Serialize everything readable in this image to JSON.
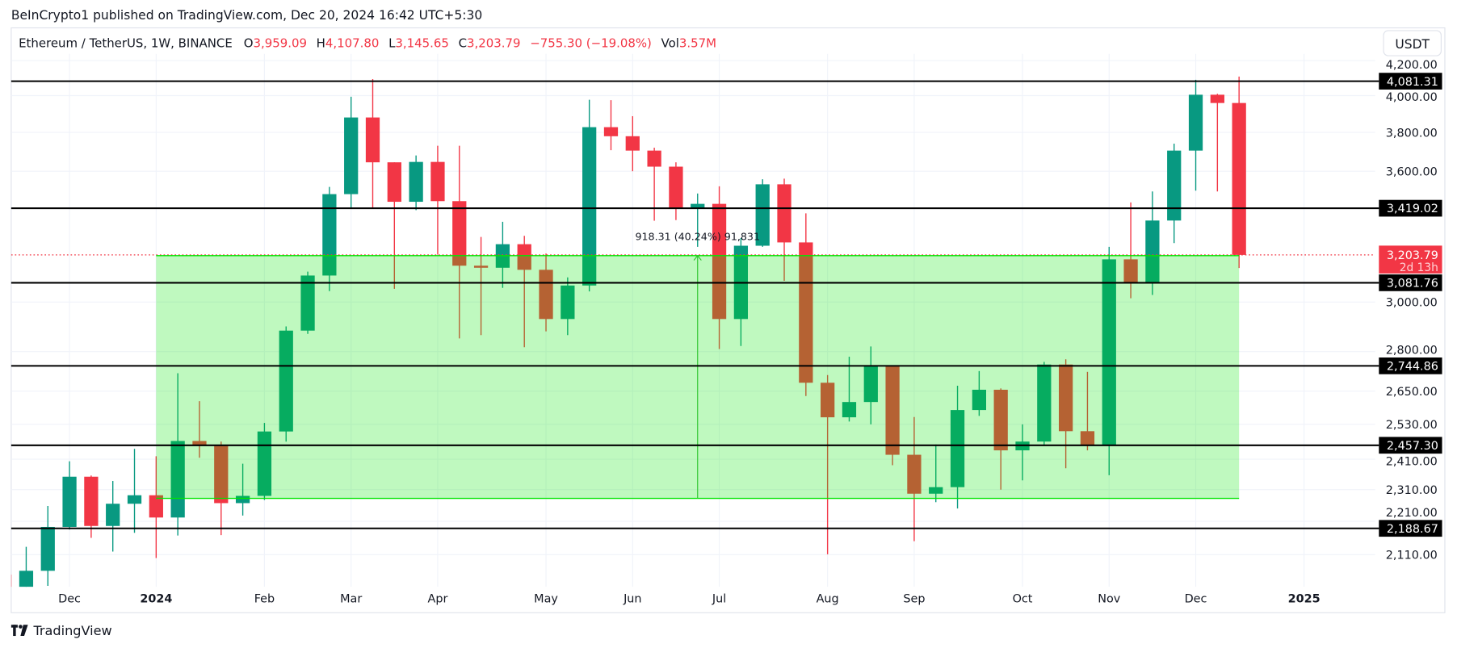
{
  "header": {
    "published": "BeInCrypto1 published on TradingView.com, Dec 20, 2024 16:42 UTC+5:30"
  },
  "legend": {
    "symbol": "Ethereum / TetherUS, 1W, BINANCE",
    "o_label": "O",
    "o": "3,959.09",
    "h_label": "H",
    "h": "4,107.80",
    "l_label": "L",
    "l": "3,145.65",
    "c_label": "C",
    "c": "3,203.79",
    "change": "−755.30 (−19.08%)",
    "vol_label": "Vol",
    "vol": "3.57M"
  },
  "currency_button": "USDT",
  "footer": {
    "brand": "TradingView",
    "logo_icon": "tradingview-logo-icon"
  },
  "colors": {
    "up": "#089981",
    "down": "#f23645",
    "zone": "#00e600",
    "level_line": "#000000",
    "current_price": "#f23645"
  },
  "chart_data": {
    "type": "candlestick",
    "interval": "1W",
    "y_scale": "log",
    "grid": true,
    "y_ticks": [
      {
        "value": 4200,
        "label": "4,200.00"
      },
      {
        "value": 4000,
        "label": "4,000.00"
      },
      {
        "value": 3800,
        "label": "3,800.00"
      },
      {
        "value": 3600,
        "label": "3,600.00"
      },
      {
        "value": 3000,
        "label": "3,000.00"
      },
      {
        "value": 2800,
        "label": "2,800.00"
      },
      {
        "value": 2650,
        "label": "2,650.00"
      },
      {
        "value": 2530,
        "label": "2,530.00"
      },
      {
        "value": 2410,
        "label": "2,410.00"
      },
      {
        "value": 2310,
        "label": "2,310.00"
      },
      {
        "value": 2210,
        "label": "2,210.00"
      },
      {
        "value": 2110,
        "label": "2,110.00"
      }
    ],
    "x_ticks": [
      {
        "date": "2023-12-04",
        "label": "Dec",
        "bold": false
      },
      {
        "date": "2024-01-01",
        "label": "2024",
        "bold": true
      },
      {
        "date": "2024-02-05",
        "label": "Feb",
        "bold": false
      },
      {
        "date": "2024-03-04",
        "label": "Mar",
        "bold": false
      },
      {
        "date": "2024-04-01",
        "label": "Apr",
        "bold": false
      },
      {
        "date": "2024-05-06",
        "label": "May",
        "bold": false
      },
      {
        "date": "2024-06-03",
        "label": "Jun",
        "bold": false
      },
      {
        "date": "2024-07-01",
        "label": "Jul",
        "bold": false
      },
      {
        "date": "2024-08-05",
        "label": "Aug",
        "bold": false
      },
      {
        "date": "2024-09-02",
        "label": "Sep",
        "bold": false
      },
      {
        "date": "2024-10-07",
        "label": "Oct",
        "bold": false
      },
      {
        "date": "2024-11-04",
        "label": "Nov",
        "bold": false
      },
      {
        "date": "2024-12-02",
        "label": "Dec",
        "bold": false
      },
      {
        "date": "2025-01-06",
        "label": "2025",
        "bold": true
      }
    ],
    "levels": [
      {
        "value": 4081.31,
        "label": "4,081.31"
      },
      {
        "value": 3419.02,
        "label": "3,419.02"
      },
      {
        "value": 3081.76,
        "label": "3,081.76"
      },
      {
        "value": 2744.86,
        "label": "2,744.86"
      },
      {
        "value": 2457.3,
        "label": "2,457.30"
      },
      {
        "value": 2188.67,
        "label": "2,188.67"
      }
    ],
    "current_price": {
      "value": 3203.79,
      "label": "3,203.79",
      "countdown": "2d 13h"
    },
    "zone": {
      "from_date": "2024-01-01",
      "to_date": "2024-12-16",
      "low": 2282.08,
      "high": 3200.39
    },
    "measure": {
      "date": "2024-06-24",
      "label": "918.31 (40.24%) 91,831"
    },
    "candles": [
      {
        "date": "2023-11-13",
        "o": 2052,
        "h": 2098,
        "l": 1982,
        "c": 2012
      },
      {
        "date": "2023-11-20",
        "o": 2012,
        "h": 2133,
        "l": 1931,
        "c": 2063
      },
      {
        "date": "2023-11-27",
        "o": 2063,
        "h": 2258,
        "l": 2020,
        "c": 2193
      },
      {
        "date": "2023-12-04",
        "o": 2193,
        "h": 2403,
        "l": 2185,
        "c": 2352
      },
      {
        "date": "2023-12-11",
        "o": 2352,
        "h": 2356,
        "l": 2160,
        "c": 2196
      },
      {
        "date": "2023-12-18",
        "o": 2196,
        "h": 2338,
        "l": 2119,
        "c": 2265
      },
      {
        "date": "2023-12-25",
        "o": 2265,
        "h": 2445,
        "l": 2175,
        "c": 2292
      },
      {
        "date": "2024-01-01",
        "o": 2292,
        "h": 2420,
        "l": 2100,
        "c": 2222
      },
      {
        "date": "2024-01-08",
        "o": 2222,
        "h": 2717,
        "l": 2167,
        "c": 2472
      },
      {
        "date": "2024-01-15",
        "o": 2472,
        "h": 2613,
        "l": 2415,
        "c": 2455
      },
      {
        "date": "2024-01-22",
        "o": 2455,
        "h": 2470,
        "l": 2168,
        "c": 2267
      },
      {
        "date": "2024-01-29",
        "o": 2267,
        "h": 2395,
        "l": 2228,
        "c": 2290
      },
      {
        "date": "2024-02-05",
        "o": 2290,
        "h": 2535,
        "l": 2277,
        "c": 2505
      },
      {
        "date": "2024-02-12",
        "o": 2505,
        "h": 2900,
        "l": 2470,
        "c": 2883
      },
      {
        "date": "2024-02-19",
        "o": 2883,
        "h": 3130,
        "l": 2870,
        "c": 3113
      },
      {
        "date": "2024-02-26",
        "o": 3113,
        "h": 3522,
        "l": 3046,
        "c": 3487
      },
      {
        "date": "2024-03-04",
        "o": 3487,
        "h": 3994,
        "l": 3421,
        "c": 3880
      },
      {
        "date": "2024-03-11",
        "o": 3880,
        "h": 4093,
        "l": 3420,
        "c": 3645
      },
      {
        "date": "2024-03-18",
        "o": 3645,
        "h": 3645,
        "l": 3056,
        "c": 3450
      },
      {
        "date": "2024-03-25",
        "o": 3450,
        "h": 3680,
        "l": 3410,
        "c": 3647
      },
      {
        "date": "2024-04-01",
        "o": 3647,
        "h": 3730,
        "l": 3205,
        "c": 3453
      },
      {
        "date": "2024-04-08",
        "o": 3453,
        "h": 3730,
        "l": 2852,
        "c": 3156
      },
      {
        "date": "2024-04-15",
        "o": 3156,
        "h": 3285,
        "l": 2865,
        "c": 3147
      },
      {
        "date": "2024-04-22",
        "o": 3147,
        "h": 3355,
        "l": 3060,
        "c": 3252
      },
      {
        "date": "2024-04-29",
        "o": 3252,
        "h": 3290,
        "l": 2817,
        "c": 3138
      },
      {
        "date": "2024-05-06",
        "o": 3138,
        "h": 3210,
        "l": 2880,
        "c": 2930
      },
      {
        "date": "2024-05-13",
        "o": 2930,
        "h": 3105,
        "l": 2865,
        "c": 3070
      },
      {
        "date": "2024-05-20",
        "o": 3070,
        "h": 3977,
        "l": 3045,
        "c": 3828
      },
      {
        "date": "2024-05-27",
        "o": 3828,
        "h": 3975,
        "l": 3707,
        "c": 3780
      },
      {
        "date": "2024-06-03",
        "o": 3780,
        "h": 3887,
        "l": 3600,
        "c": 3705
      },
      {
        "date": "2024-06-10",
        "o": 3705,
        "h": 3720,
        "l": 3360,
        "c": 3623
      },
      {
        "date": "2024-06-17",
        "o": 3623,
        "h": 3645,
        "l": 3363,
        "c": 3418
      },
      {
        "date": "2024-06-24",
        "o": 3418,
        "h": 3490,
        "l": 3240,
        "c": 3440
      },
      {
        "date": "2024-07-01",
        "o": 3440,
        "h": 3525,
        "l": 2810,
        "c": 2930
      },
      {
        "date": "2024-07-08",
        "o": 2930,
        "h": 3280,
        "l": 2822,
        "c": 3245
      },
      {
        "date": "2024-07-15",
        "o": 3245,
        "h": 3560,
        "l": 3240,
        "c": 3535
      },
      {
        "date": "2024-07-22",
        "o": 3535,
        "h": 3563,
        "l": 3090,
        "c": 3260
      },
      {
        "date": "2024-07-29",
        "o": 3260,
        "h": 3395,
        "l": 2632,
        "c": 2681
      },
      {
        "date": "2024-08-05",
        "o": 2681,
        "h": 2710,
        "l": 2111,
        "c": 2555
      },
      {
        "date": "2024-08-12",
        "o": 2555,
        "h": 2780,
        "l": 2540,
        "c": 2610
      },
      {
        "date": "2024-08-19",
        "o": 2610,
        "h": 2820,
        "l": 2530,
        "c": 2745
      },
      {
        "date": "2024-08-26",
        "o": 2745,
        "h": 2745,
        "l": 2390,
        "c": 2425
      },
      {
        "date": "2024-09-02",
        "o": 2425,
        "h": 2556,
        "l": 2150,
        "c": 2297
      },
      {
        "date": "2024-09-09",
        "o": 2297,
        "h": 2460,
        "l": 2270,
        "c": 2318
      },
      {
        "date": "2024-09-16",
        "o": 2318,
        "h": 2670,
        "l": 2250,
        "c": 2581
      },
      {
        "date": "2024-09-23",
        "o": 2581,
        "h": 2725,
        "l": 2560,
        "c": 2655
      },
      {
        "date": "2024-09-30",
        "o": 2655,
        "h": 2660,
        "l": 2310,
        "c": 2440
      },
      {
        "date": "2024-10-07",
        "o": 2440,
        "h": 2530,
        "l": 2340,
        "c": 2470
      },
      {
        "date": "2024-10-14",
        "o": 2470,
        "h": 2760,
        "l": 2455,
        "c": 2750
      },
      {
        "date": "2024-10-21",
        "o": 2750,
        "h": 2770,
        "l": 2380,
        "c": 2506
      },
      {
        "date": "2024-10-28",
        "o": 2506,
        "h": 2722,
        "l": 2440,
        "c": 2457
      },
      {
        "date": "2024-11-04",
        "o": 2457,
        "h": 3240,
        "l": 2357,
        "c": 3184
      },
      {
        "date": "2024-11-11",
        "o": 3184,
        "h": 3447,
        "l": 3016,
        "c": 3078
      },
      {
        "date": "2024-11-18",
        "o": 3078,
        "h": 3500,
        "l": 3030,
        "c": 3361
      },
      {
        "date": "2024-11-25",
        "o": 3361,
        "h": 3741,
        "l": 3257,
        "c": 3705
      },
      {
        "date": "2024-12-02",
        "o": 3705,
        "h": 4089,
        "l": 3504,
        "c": 4005
      },
      {
        "date": "2024-12-09",
        "o": 4005,
        "h": 4010,
        "l": 3500,
        "c": 3959.09
      },
      {
        "date": "2024-12-16",
        "o": 3959.09,
        "h": 4107.8,
        "l": 3145.65,
        "c": 3203.79
      }
    ]
  }
}
